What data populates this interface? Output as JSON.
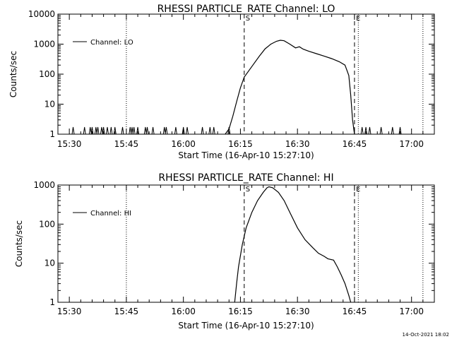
{
  "footer_stamp": "14-Oct-2021 18:02",
  "chart_data": [
    {
      "type": "line",
      "title": "RHESSI PARTICLE_RATE Channel: LO",
      "ylabel": "Counts/sec",
      "xlabel": "Start Time (16-Apr-10 15:27:10)",
      "yscale": "log",
      "ylim": [
        1,
        10000
      ],
      "xlim_minutes": [
        -3,
        96
      ],
      "x_ticks": [
        {
          "label": "15:30",
          "min": 0
        },
        {
          "label": "15:45",
          "min": 15
        },
        {
          "label": "16:00",
          "min": 30
        },
        {
          "label": "16:15",
          "min": 45
        },
        {
          "label": "16:30",
          "min": 60
        },
        {
          "label": "16:45",
          "min": 75
        },
        {
          "label": "17:00",
          "min": 90
        }
      ],
      "y_ticks": [
        {
          "label": "1",
          "v": 1
        },
        {
          "label": "10",
          "v": 10
        },
        {
          "label": "100",
          "v": 100
        },
        {
          "label": "1000",
          "v": 1000
        },
        {
          "label": "10000",
          "v": 10000
        }
      ],
      "legend": {
        "label": "Channel: LO",
        "position": "top-left"
      },
      "markers": [
        {
          "label": "S",
          "min": 46,
          "style": "dashed"
        },
        {
          "label": "E",
          "min": 75,
          "style": "dashed"
        }
      ],
      "eclipse_lines_min": [
        -3,
        15,
        76,
        93
      ],
      "spikes_min": [
        1,
        4,
        5.5,
        6,
        7,
        7.5,
        8.5,
        9,
        10,
        11,
        12,
        14,
        16,
        16.5,
        17,
        18,
        20,
        20.5,
        22,
        25,
        25.5,
        28,
        30,
        31,
        35,
        37,
        38,
        42,
        77,
        78,
        79,
        82,
        85,
        87
      ],
      "series": [
        {
          "name": "Channel: LO",
          "points": [
            [
              41.0,
              1
            ],
            [
              42.0,
              1.5
            ],
            [
              43.0,
              4
            ],
            [
              44.0,
              12
            ],
            [
              45.0,
              35
            ],
            [
              46.0,
              80
            ],
            [
              48.0,
              180
            ],
            [
              50.0,
              400
            ],
            [
              51.5,
              700
            ],
            [
              53.0,
              1000
            ],
            [
              54.5,
              1250
            ],
            [
              55.5,
              1350
            ],
            [
              56.5,
              1300
            ],
            [
              58.0,
              1000
            ],
            [
              59.5,
              750
            ],
            [
              60.5,
              820
            ],
            [
              61.5,
              680
            ],
            [
              63.0,
              580
            ],
            [
              65.0,
              480
            ],
            [
              67.0,
              400
            ],
            [
              69.0,
              330
            ],
            [
              71.0,
              260
            ],
            [
              72.5,
              200
            ],
            [
              73.5,
              90
            ],
            [
              74.0,
              20
            ],
            [
              74.5,
              3
            ],
            [
              75.0,
              1
            ]
          ]
        }
      ]
    },
    {
      "type": "line",
      "title": "RHESSI PARTICLE_RATE Channel: HI",
      "ylabel": "Counts/sec",
      "xlabel": "Start Time (16-Apr-10 15:27:10)",
      "yscale": "log",
      "ylim": [
        1,
        1000
      ],
      "xlim_minutes": [
        -3,
        96
      ],
      "x_ticks": [
        {
          "label": "15:30",
          "min": 0
        },
        {
          "label": "15:45",
          "min": 15
        },
        {
          "label": "16:00",
          "min": 30
        },
        {
          "label": "16:15",
          "min": 45
        },
        {
          "label": "16:30",
          "min": 60
        },
        {
          "label": "16:45",
          "min": 75
        },
        {
          "label": "17:00",
          "min": 90
        }
      ],
      "y_ticks": [
        {
          "label": "1",
          "v": 1
        },
        {
          "label": "10",
          "v": 10
        },
        {
          "label": "100",
          "v": 100
        },
        {
          "label": "1000",
          "v": 1000
        }
      ],
      "legend": {
        "label": "Channel: HI",
        "position": "top-left"
      },
      "markers": [
        {
          "label": "S",
          "min": 46,
          "style": "dashed"
        },
        {
          "label": "E",
          "min": 75,
          "style": "dashed"
        }
      ],
      "eclipse_lines_min": [
        -3,
        15,
        76,
        93
      ],
      "spikes_min": [],
      "series": [
        {
          "name": "Channel: HI",
          "points": [
            [
              43.5,
              1
            ],
            [
              44.0,
              3
            ],
            [
              44.5,
              8
            ],
            [
              45.5,
              30
            ],
            [
              46.5,
              80
            ],
            [
              48.0,
              200
            ],
            [
              49.5,
              400
            ],
            [
              51.0,
              650
            ],
            [
              52.0,
              850
            ],
            [
              52.5,
              900
            ],
            [
              53.5,
              850
            ],
            [
              55.0,
              650
            ],
            [
              56.5,
              400
            ],
            [
              58.0,
              200
            ],
            [
              60.0,
              80
            ],
            [
              62.0,
              40
            ],
            [
              64.0,
              25
            ],
            [
              65.5,
              18
            ],
            [
              67.0,
              15
            ],
            [
              68.0,
              13
            ],
            [
              69.5,
              12
            ],
            [
              70.5,
              8
            ],
            [
              71.5,
              5
            ],
            [
              72.5,
              3
            ],
            [
              73.5,
              1.5
            ],
            [
              74.0,
              1
            ]
          ]
        }
      ]
    }
  ]
}
